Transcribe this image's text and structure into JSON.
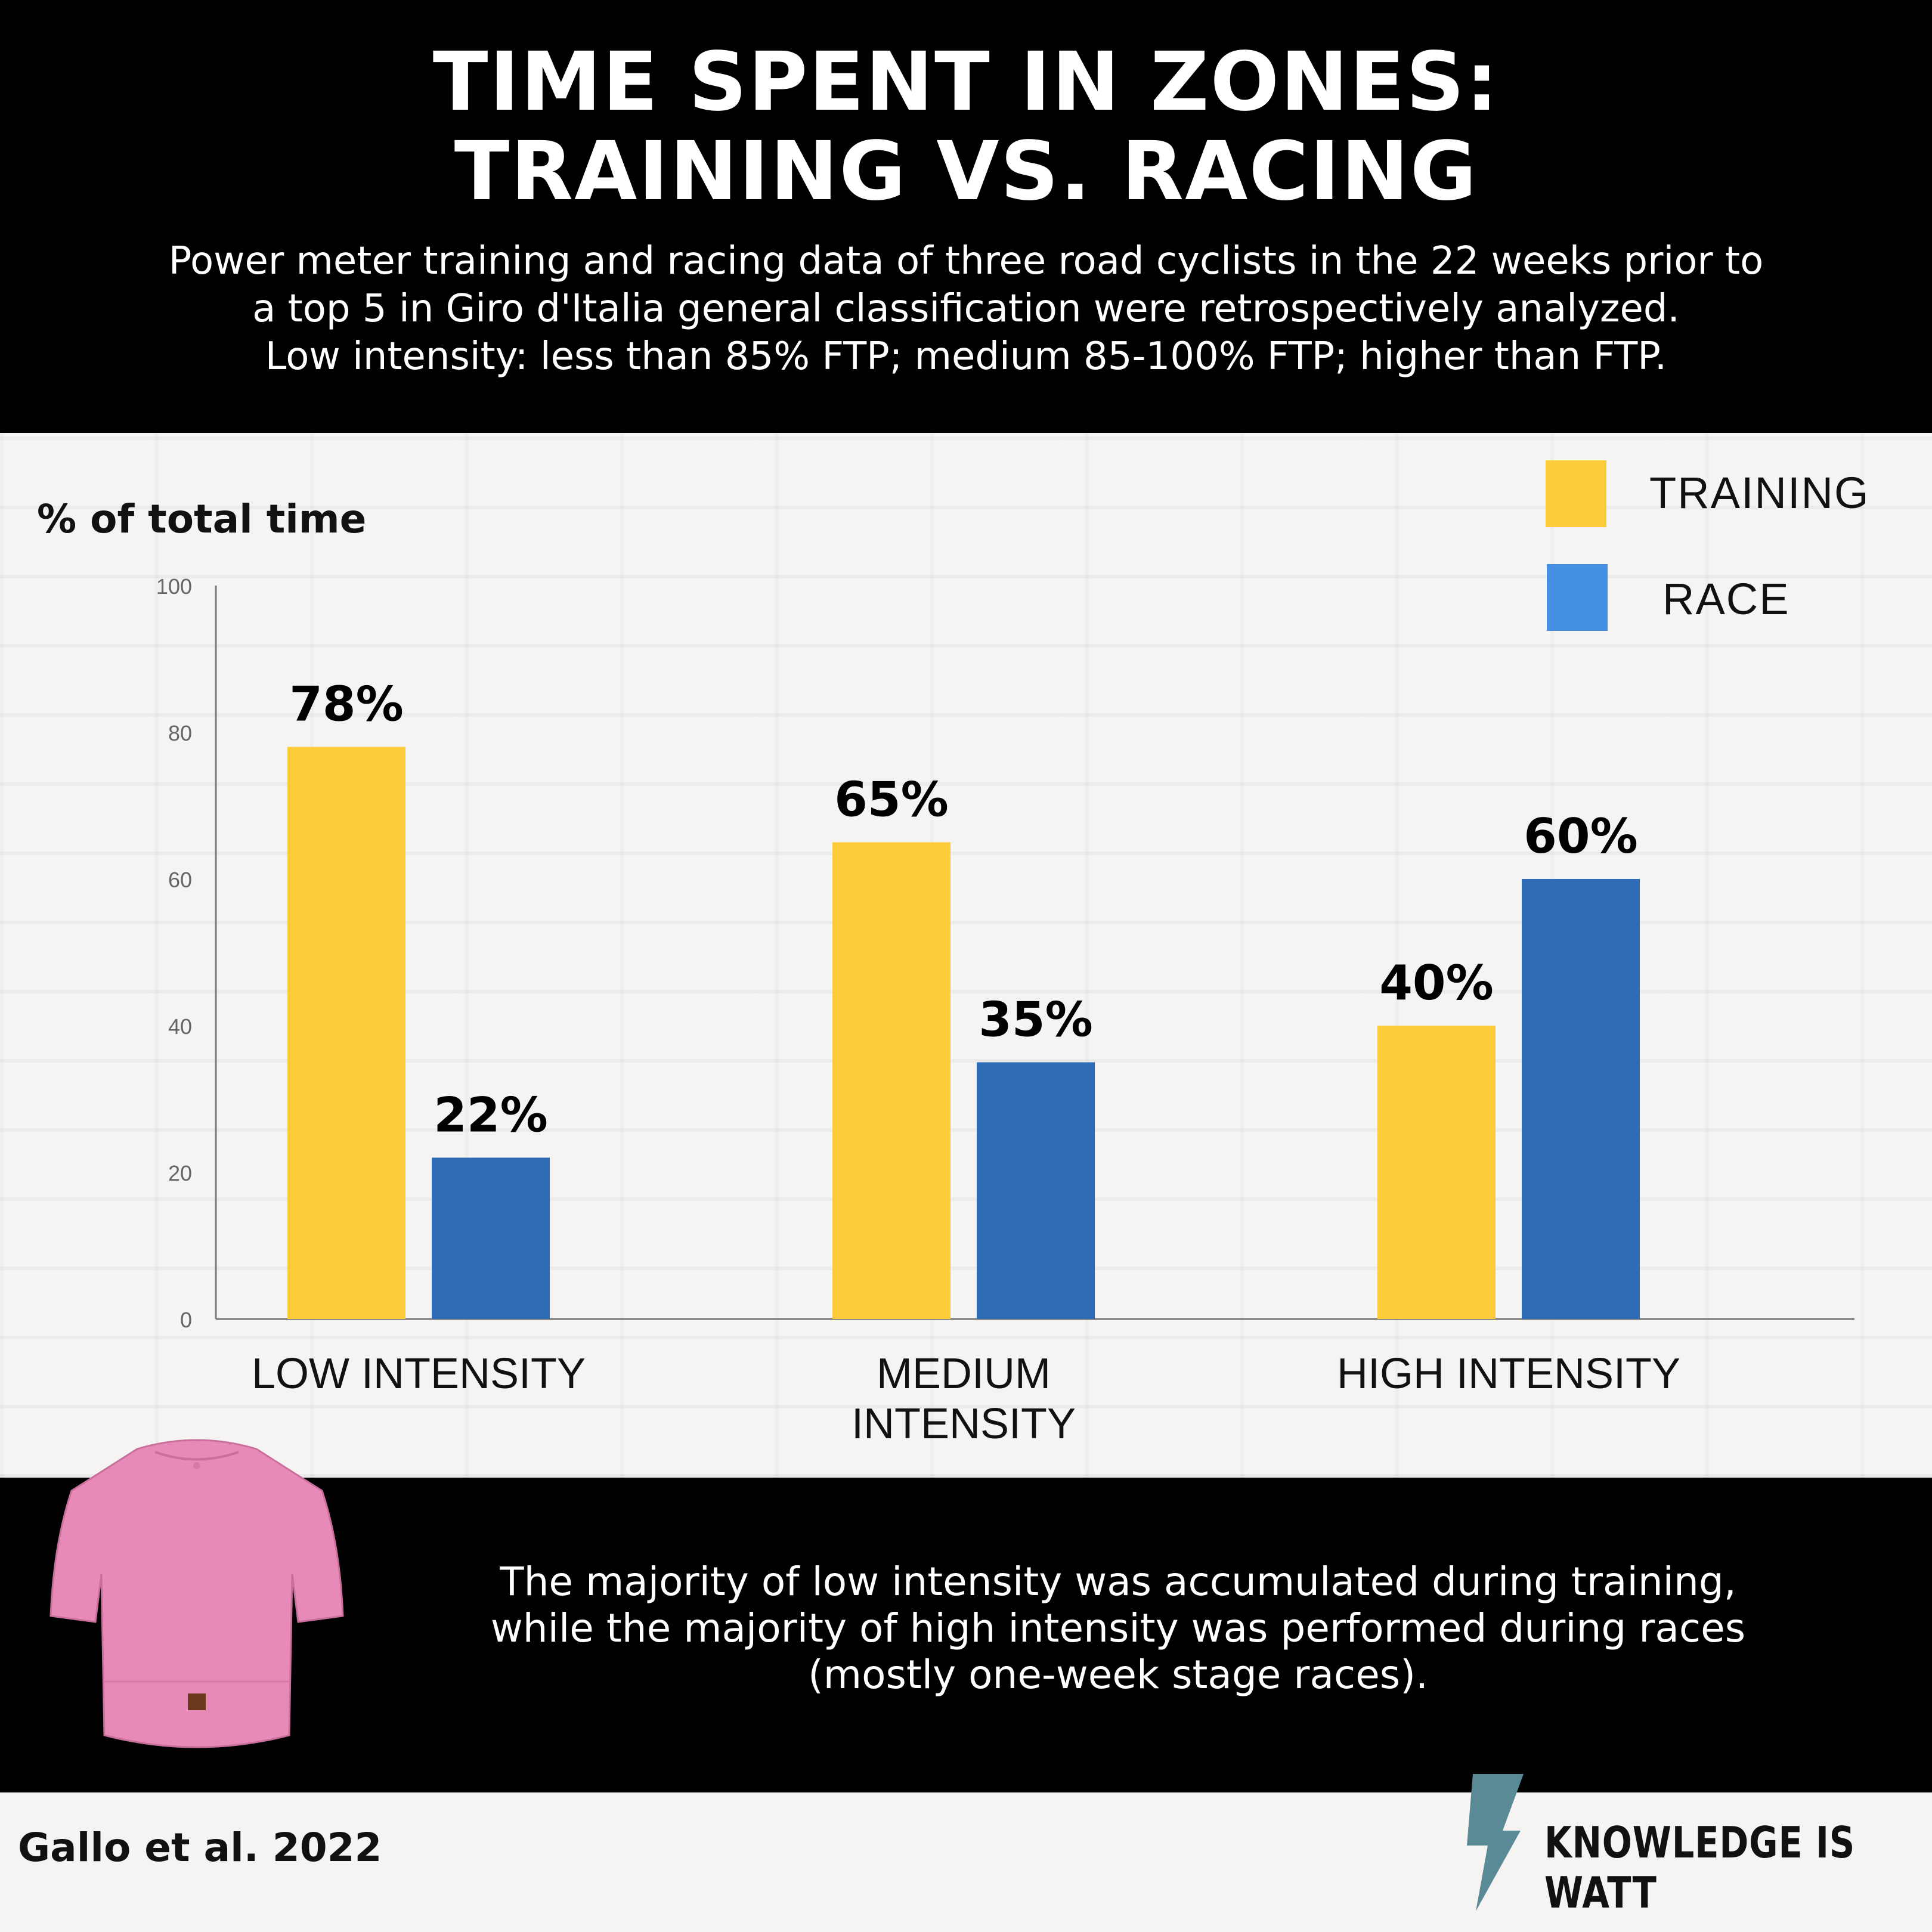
{
  "header": {
    "title_line1": "TIME SPENT IN ZONES:",
    "title_line2": "TRAINING VS. RACING",
    "subtitle_line1": "Power meter training and racing data of three road cyclists in the 22 weeks prior to",
    "subtitle_line2": "a top 5 in Giro d'Italia general classification were retrospectively analyzed.",
    "subtitle_line3": "Low intensity: less than 85% FTP; medium 85-100% FTP; higher than FTP."
  },
  "chart_data": {
    "type": "bar",
    "ylabel": "% of total time",
    "ylim": [
      0,
      100
    ],
    "yticks": [
      "0",
      "20",
      "40",
      "60",
      "80",
      "100"
    ],
    "categories": [
      "LOW INTENSITY",
      "MEDIUM INTENSITY",
      "HIGH INTENSITY"
    ],
    "category_lines": [
      [
        "LOW INTENSITY"
      ],
      [
        "MEDIUM",
        "INTENSITY"
      ],
      [
        "HIGH INTENSITY"
      ]
    ],
    "series": [
      {
        "name": "TRAINING",
        "values": [
          78,
          65,
          40
        ],
        "labels": [
          "78%",
          "65%",
          "40%"
        ],
        "color": "#fecb3b"
      },
      {
        "name": "RACE",
        "values": [
          22,
          35,
          60
        ],
        "labels": [
          "22%",
          "35%",
          "60%"
        ],
        "color": "#2e6db5"
      }
    ],
    "grid": false,
    "legend_position": "top-right",
    "legend_colors": {
      "TRAINING": "#fecb3b",
      "RACE": "#4690e4"
    }
  },
  "banner": {
    "line1": "The majority of low intensity was accumulated during training,",
    "line2": "while the majority of high intensity was performed during races",
    "line3": "(mostly one-week stage races)."
  },
  "footer": {
    "citation": "Gallo et al. 2022",
    "brand": "KNOWLEDGE IS WATT"
  },
  "colors": {
    "header_bg": "#000000",
    "jersey": "#e88ab8",
    "bolt": "#5a8a96"
  }
}
